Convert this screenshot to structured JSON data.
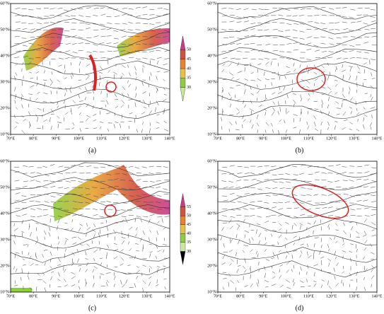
{
  "panels": [
    {
      "label": "(a)",
      "lon_labels": [
        "70°E",
        "80°E",
        "90°E",
        "100°E",
        "110°E",
        "120°E",
        "130°E",
        "140°E"
      ],
      "lat_labels": [
        "10°N",
        "20°N",
        "30°N",
        "40°N",
        "50°N",
        "60°N"
      ],
      "colorbar_ticks": [
        30,
        35,
        40,
        45,
        50
      ]
    },
    {
      "label": "(b)",
      "lon_labels": [
        "70°E",
        "80°E",
        "90°E",
        "100°E",
        "110°E",
        "120°E",
        "130°E",
        "140°E"
      ],
      "lat_labels": [
        "10°N",
        "20°N",
        "30°N",
        "40°N",
        "50°N",
        "60°N"
      ]
    },
    {
      "label": "(c)",
      "lon_labels": [
        "70°E",
        "80°E",
        "90°E",
        "100°E",
        "110°E",
        "120°E",
        "130°E",
        "140°E"
      ],
      "lat_labels": [
        "10°N",
        "20°N",
        "30°N",
        "40°N",
        "50°N",
        "60°N"
      ],
      "colorbar_ticks": [
        30,
        35,
        40,
        45,
        50,
        55
      ]
    },
    {
      "label": "(d)",
      "lon_labels": [
        "70°E",
        "80°E",
        "90°E",
        "100°E",
        "110°E",
        "120°E",
        "130°E",
        "140°E"
      ],
      "lat_labels": [
        "10°N",
        "20°N",
        "30°N",
        "40°N",
        "50°N",
        "60°N"
      ]
    }
  ]
}
